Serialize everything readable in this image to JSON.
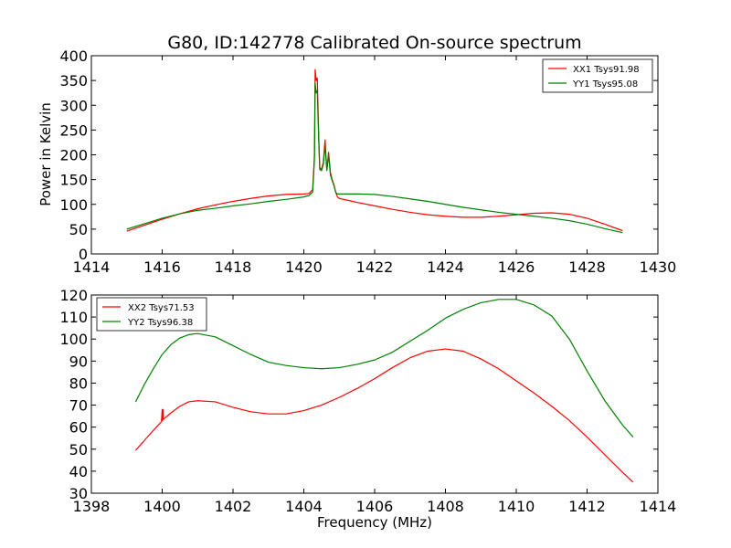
{
  "chart_data": [
    {
      "type": "line",
      "title": "G80, ID:142778 Calibrated On-source spectrum",
      "xlabel": "",
      "ylabel": "Power in Kelvin",
      "xlim": [
        1414,
        1430
      ],
      "ylim": [
        0,
        400
      ],
      "xticks": [
        1414,
        1416,
        1418,
        1420,
        1422,
        1424,
        1426,
        1428,
        1430
      ],
      "yticks": [
        0,
        50,
        100,
        150,
        200,
        250,
        300,
        350,
        400
      ],
      "legend_position": "top-right",
      "series": [
        {
          "name": "XX1 Tsys91.98",
          "color": "#ff0000",
          "x": [
            1415.0,
            1415.5,
            1416.0,
            1416.5,
            1417.0,
            1417.5,
            1418.0,
            1418.5,
            1419.0,
            1419.5,
            1420.0,
            1420.15,
            1420.25,
            1420.3,
            1420.32,
            1420.35,
            1420.38,
            1420.42,
            1420.45,
            1420.5,
            1420.55,
            1420.6,
            1420.65,
            1420.7,
            1420.75,
            1420.8,
            1420.85,
            1420.9,
            1420.95,
            1421.0,
            1421.5,
            1422.0,
            1422.5,
            1423.0,
            1423.5,
            1424.0,
            1424.5,
            1425.0,
            1425.5,
            1426.0,
            1426.5,
            1427.0,
            1427.5,
            1428.0,
            1428.5,
            1429.0
          ],
          "values": [
            46,
            58,
            70,
            81,
            91,
            99,
            106,
            112,
            117,
            120,
            121,
            122,
            130,
            200,
            372,
            350,
            355,
            240,
            175,
            170,
            185,
            230,
            170,
            205,
            165,
            150,
            140,
            125,
            115,
            112,
            104,
            97,
            90,
            84,
            79,
            76,
            74,
            74,
            76,
            79,
            82,
            83,
            80,
            72,
            60,
            47
          ]
        },
        {
          "name": "YY1 Tsys95.08",
          "color": "#008000",
          "x": [
            1415.0,
            1415.5,
            1416.0,
            1416.5,
            1417.0,
            1417.5,
            1418.0,
            1418.5,
            1419.0,
            1419.5,
            1420.0,
            1420.15,
            1420.25,
            1420.3,
            1420.32,
            1420.35,
            1420.38,
            1420.42,
            1420.45,
            1420.5,
            1420.55,
            1420.6,
            1420.65,
            1420.7,
            1420.75,
            1420.8,
            1420.85,
            1420.9,
            1420.95,
            1421.0,
            1421.5,
            1422.0,
            1422.5,
            1423.0,
            1423.5,
            1424.0,
            1424.5,
            1425.0,
            1425.5,
            1426.0,
            1426.5,
            1427.0,
            1427.5,
            1428.0,
            1428.5,
            1429.0
          ],
          "values": [
            50,
            61,
            72,
            81,
            88,
            92,
            97,
            101,
            106,
            110,
            115,
            118,
            125,
            190,
            345,
            325,
            330,
            230,
            170,
            168,
            180,
            220,
            168,
            200,
            160,
            148,
            138,
            124,
            121,
            121,
            121,
            120,
            116,
            111,
            106,
            100,
            94,
            89,
            84,
            80,
            76,
            72,
            67,
            60,
            51,
            43
          ]
        }
      ]
    },
    {
      "type": "line",
      "title": "",
      "xlabel": "Frequency (MHz)",
      "ylabel": "",
      "xlim": [
        1398,
        1414
      ],
      "ylim": [
        30,
        120
      ],
      "xticks": [
        1398,
        1400,
        1402,
        1404,
        1406,
        1408,
        1410,
        1412,
        1414
      ],
      "yticks": [
        30,
        40,
        50,
        60,
        70,
        80,
        90,
        100,
        110,
        120
      ],
      "legend_position": "top-left",
      "series": [
        {
          "name": "XX2 Tsys71.53",
          "color": "#ff0000",
          "x": [
            1399.25,
            1399.5,
            1399.75,
            1399.98,
            1400.0,
            1400.01,
            1400.02,
            1400.03,
            1400.25,
            1400.5,
            1400.75,
            1401.0,
            1401.5,
            1402.0,
            1402.5,
            1403.0,
            1403.5,
            1404.0,
            1404.5,
            1405.0,
            1405.5,
            1406.0,
            1406.5,
            1407.0,
            1407.5,
            1408.0,
            1408.5,
            1409.0,
            1409.5,
            1410.0,
            1410.5,
            1411.0,
            1411.5,
            1412.0,
            1412.5,
            1413.0,
            1413.3
          ],
          "values": [
            49.5,
            54.0,
            58.5,
            62.5,
            68.0,
            63.0,
            68.0,
            63.5,
            66.5,
            69.5,
            71.5,
            72.0,
            71.5,
            69.0,
            67.0,
            66.0,
            66.0,
            67.5,
            70.0,
            73.5,
            77.5,
            82.0,
            87.0,
            91.5,
            94.5,
            95.5,
            94.5,
            91.0,
            86.5,
            81.0,
            75.5,
            69.5,
            63.0,
            55.5,
            47.5,
            39.5,
            35.0
          ]
        },
        {
          "name": "YY2 Tsys96.38",
          "color": "#008000",
          "x": [
            1399.25,
            1399.5,
            1399.75,
            1400.0,
            1400.25,
            1400.5,
            1400.75,
            1401.0,
            1401.5,
            1402.0,
            1402.5,
            1403.0,
            1403.5,
            1404.0,
            1404.5,
            1405.0,
            1405.5,
            1406.0,
            1406.5,
            1407.0,
            1407.5,
            1408.0,
            1408.5,
            1409.0,
            1409.5,
            1410.0,
            1410.5,
            1411.0,
            1411.5,
            1412.0,
            1412.5,
            1413.0,
            1413.3
          ],
          "values": [
            71.5,
            79.5,
            86.5,
            93.0,
            97.5,
            100.5,
            102.0,
            102.5,
            101.0,
            97.0,
            93.0,
            89.5,
            88.0,
            87.0,
            86.5,
            87.0,
            88.5,
            90.5,
            94.0,
            99.0,
            104.0,
            109.5,
            113.5,
            116.5,
            118.0,
            118.0,
            115.5,
            110.5,
            100.0,
            85.5,
            72.0,
            61.0,
            55.5
          ]
        }
      ]
    }
  ]
}
